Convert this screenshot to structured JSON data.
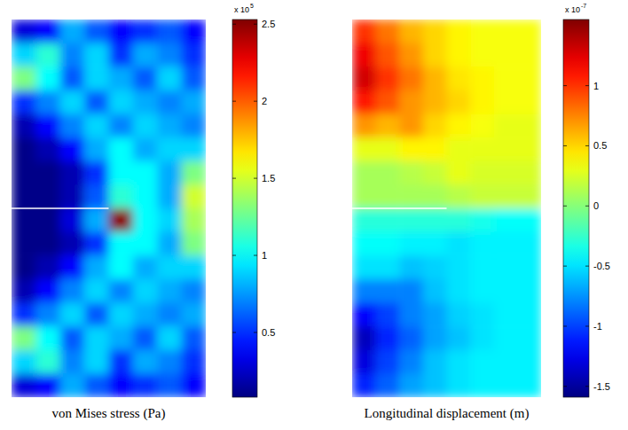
{
  "chart_data": [
    {
      "type": "heatmap",
      "x_label": "von Mises stress (Pa)",
      "tick_labels": false,
      "cells": [
        [
          0.3,
          0.4,
          0.8,
          0.6,
          0.4,
          0.5,
          0.6,
          0.4
        ],
        [
          0.9,
          1.1,
          0.7,
          0.9,
          0.5,
          0.8,
          0.7,
          0.5
        ],
        [
          1.3,
          1.0,
          0.6,
          0.9,
          0.8,
          0.6,
          0.9,
          0.6
        ],
        [
          0.5,
          0.7,
          0.9,
          0.6,
          0.9,
          0.8,
          0.7,
          0.8
        ],
        [
          0.2,
          0.4,
          0.7,
          0.9,
          0.7,
          0.9,
          0.8,
          0.7
        ],
        [
          0.1,
          0.2,
          0.4,
          0.8,
          1.0,
          0.8,
          0.9,
          0.9
        ],
        [
          0.1,
          0.1,
          0.2,
          0.5,
          1.0,
          1.0,
          0.8,
          1.3
        ],
        [
          0.1,
          0.1,
          0.2,
          0.6,
          1.1,
          1.0,
          0.8,
          1.5
        ],
        [
          0.1,
          0.1,
          0.3,
          0.8,
          2.5,
          1.0,
          0.9,
          1.4
        ],
        [
          0.1,
          0.1,
          0.2,
          0.5,
          1.0,
          1.0,
          0.8,
          1.3
        ],
        [
          0.1,
          0.2,
          0.4,
          0.8,
          1.0,
          0.8,
          0.9,
          0.9
        ],
        [
          0.2,
          0.4,
          0.7,
          0.9,
          0.7,
          0.9,
          0.8,
          0.7
        ],
        [
          0.5,
          0.7,
          0.9,
          0.6,
          0.9,
          0.8,
          0.7,
          0.8
        ],
        [
          1.3,
          1.0,
          0.6,
          0.9,
          0.8,
          0.6,
          0.9,
          0.6
        ],
        [
          0.9,
          1.1,
          0.7,
          0.9,
          0.5,
          0.8,
          0.7,
          0.5
        ],
        [
          0.3,
          0.4,
          0.8,
          0.6,
          0.4,
          0.5,
          0.6,
          0.4
        ]
      ],
      "colorbar_range": [
        0.08,
        2.53
      ],
      "colorbar_ticks": [
        0.5,
        1,
        1.5,
        2,
        2.5
      ],
      "colorbar_multiplier": "x 10",
      "colorbar_exponent": 5
    },
    {
      "type": "heatmap",
      "x_label": "Longitudinal displacement (m)",
      "tick_labels": false,
      "cells": [
        [
          1.0,
          0.8,
          0.6,
          0.5,
          0.4,
          0.35,
          0.35,
          0.35
        ],
        [
          1.2,
          0.9,
          0.7,
          0.5,
          0.4,
          0.35,
          0.35,
          0.35
        ],
        [
          1.3,
          1.0,
          0.8,
          0.6,
          0.45,
          0.4,
          0.35,
          0.35
        ],
        [
          1.1,
          0.9,
          0.7,
          0.6,
          0.5,
          0.4,
          0.35,
          0.35
        ],
        [
          0.7,
          0.6,
          0.7,
          0.5,
          0.4,
          0.35,
          0.3,
          0.3
        ],
        [
          0.3,
          0.3,
          0.4,
          0.4,
          0.3,
          0.3,
          0.3,
          0.3
        ],
        [
          0.1,
          0.1,
          0.15,
          0.2,
          0.3,
          0.25,
          0.25,
          0.25
        ],
        [
          0.1,
          0.1,
          0.1,
          0.1,
          0.15,
          0.2,
          0.2,
          0.2
        ],
        [
          -0.3,
          -0.3,
          -0.3,
          -0.3,
          -0.3,
          -0.35,
          -0.4,
          -0.4
        ],
        [
          -0.4,
          -0.4,
          -0.45,
          -0.45,
          -0.5,
          -0.45,
          -0.45,
          -0.45
        ],
        [
          -0.5,
          -0.5,
          -0.6,
          -0.55,
          -0.5,
          -0.45,
          -0.45,
          -0.45
        ],
        [
          -0.8,
          -0.8,
          -0.8,
          -0.6,
          -0.5,
          -0.45,
          -0.45,
          -0.45
        ],
        [
          -1.2,
          -1.0,
          -0.8,
          -0.7,
          -0.55,
          -0.5,
          -0.45,
          -0.45
        ],
        [
          -1.4,
          -1.1,
          -0.9,
          -0.7,
          -0.6,
          -0.5,
          -0.45,
          -0.45
        ],
        [
          -1.3,
          -1.0,
          -0.8,
          -0.6,
          -0.5,
          -0.45,
          -0.45,
          -0.45
        ],
        [
          -1.1,
          -0.9,
          -0.7,
          -0.6,
          -0.5,
          -0.45,
          -0.45,
          -0.45
        ]
      ],
      "colorbar_range": [
        -1.59,
        1.55
      ],
      "colorbar_ticks": [
        -1.5,
        -1,
        -0.5,
        0,
        0.5,
        1
      ],
      "colorbar_multiplier": "x 10",
      "colorbar_exponent": -7
    }
  ]
}
